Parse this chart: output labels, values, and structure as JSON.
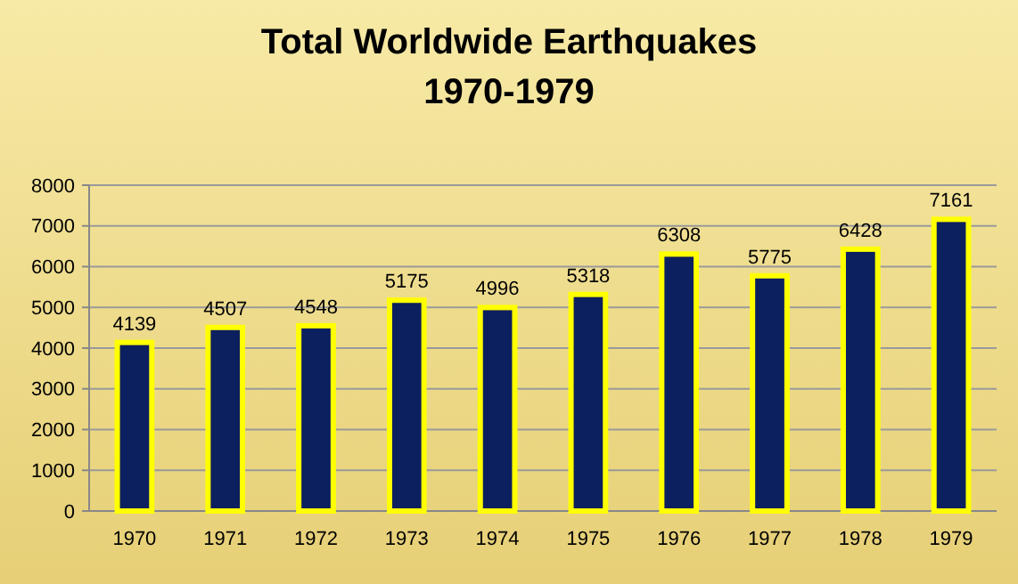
{
  "chart_data": {
    "type": "bar",
    "title": "Total Worldwide Earthquakes",
    "subtitle": "1970-1979",
    "categories": [
      "1970",
      "1971",
      "1972",
      "1973",
      "1974",
      "1975",
      "1976",
      "1977",
      "1978",
      "1979"
    ],
    "values": [
      4139,
      4507,
      4548,
      5175,
      4996,
      5318,
      6308,
      5775,
      6428,
      7161
    ],
    "color": "#0c1f5e",
    "ylim": [
      0,
      8000
    ],
    "yticks": [
      0,
      1000,
      2000,
      3000,
      4000,
      5000,
      6000,
      7000,
      8000
    ],
    "grid": "y",
    "data_labels": true
  }
}
